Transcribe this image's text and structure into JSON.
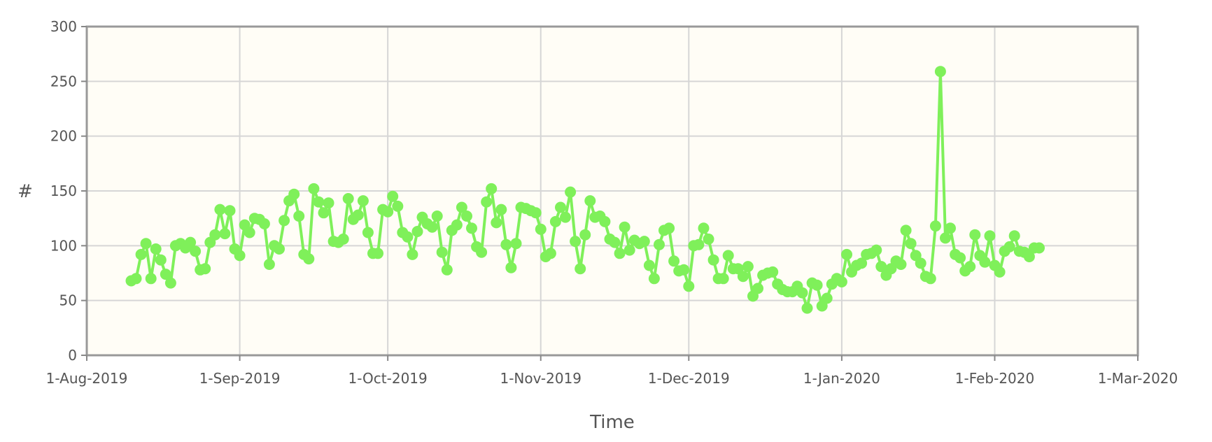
{
  "chart_data": {
    "type": "line",
    "title": "",
    "xlabel": "Time",
    "ylabel": "#",
    "x_axis_type": "date",
    "xlim": [
      "2019-08-01",
      "2020-03-01"
    ],
    "ylim": [
      0,
      300
    ],
    "y_ticks": [
      0,
      50,
      100,
      150,
      200,
      250,
      300
    ],
    "x_ticks": [
      {
        "date": "2019-08-01",
        "label": "1-Aug-2019"
      },
      {
        "date": "2019-09-01",
        "label": "1-Sep-2019"
      },
      {
        "date": "2019-10-01",
        "label": "1-Oct-2019"
      },
      {
        "date": "2019-11-01",
        "label": "1-Nov-2019"
      },
      {
        "date": "2019-12-01",
        "label": "1-Dec-2019"
      },
      {
        "date": "2020-01-01",
        "label": "1-Jan-2020"
      },
      {
        "date": "2020-02-01",
        "label": "1-Feb-2020"
      },
      {
        "date": "2020-03-01",
        "label": "1-Mar-2020"
      }
    ],
    "grid": true,
    "legend": "none",
    "colors": {
      "series": "#7ff05a",
      "plot_bg": "#fffdf6",
      "frame": "#999999"
    },
    "series": [
      {
        "start_date": "2019-08-10",
        "values": [
          68,
          70,
          92,
          102,
          70,
          97,
          87,
          74,
          66,
          100,
          102,
          98,
          103,
          95,
          78,
          79,
          103,
          110,
          133,
          111,
          132,
          97,
          91,
          119,
          112,
          125,
          124,
          120,
          83,
          100,
          97,
          123,
          141,
          147,
          127,
          92,
          88,
          152,
          140,
          130,
          139,
          104,
          103,
          106,
          143,
          124,
          128,
          141,
          112,
          93,
          93,
          133,
          131,
          145,
          136,
          112,
          108,
          92,
          113,
          126,
          120,
          117,
          127,
          94,
          78,
          114,
          119,
          135,
          127,
          116,
          99,
          94,
          140,
          152,
          121,
          133,
          101,
          80,
          102,
          135,
          134,
          132,
          130,
          115,
          90,
          93,
          122,
          135,
          126,
          149,
          104,
          79,
          110,
          141,
          126,
          127,
          122,
          106,
          103,
          93,
          117,
          96,
          105,
          102,
          104,
          82,
          70,
          101,
          114,
          116,
          86,
          77,
          78,
          63,
          100,
          101,
          116,
          106,
          87,
          70,
          70,
          91,
          79,
          79,
          72,
          81,
          54,
          61,
          73,
          75,
          76,
          65,
          60,
          58,
          58,
          63,
          57,
          43,
          66,
          64,
          45,
          52,
          65,
          70,
          67,
          92,
          76,
          82,
          84,
          92,
          93,
          96,
          81,
          73,
          79,
          86,
          83,
          114,
          102,
          91,
          84,
          72,
          70,
          118,
          259,
          107,
          116,
          92,
          89,
          77,
          81,
          110,
          91,
          85,
          109,
          82,
          76,
          95,
          99,
          109,
          95,
          94,
          90,
          98,
          98
        ]
      }
    ]
  }
}
